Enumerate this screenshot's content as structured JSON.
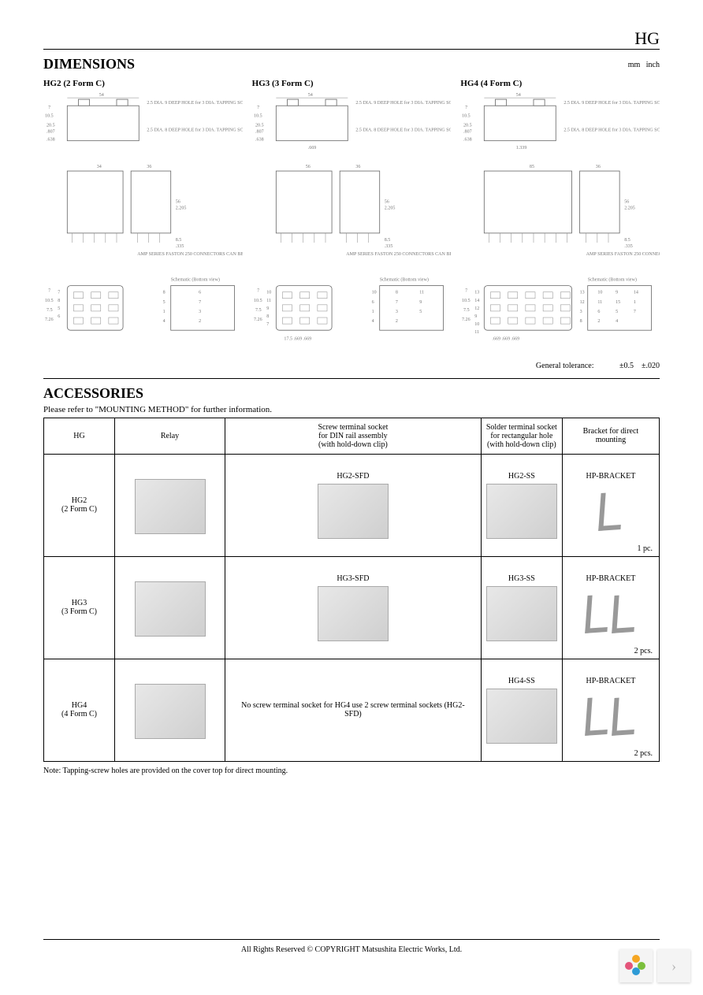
{
  "header": {
    "mark": "HG"
  },
  "dimensions": {
    "title": "DIMENSIONS",
    "units_mm": "mm",
    "units_inch": "inch",
    "cols": [
      {
        "label": "HG2 (2 Form C)",
        "top_dims": {
          "w": "54",
          "w_in": "",
          "h": "20.5",
          "h_in": ".807",
          "off": ".638",
          "t1": "7",
          "t2": "10.5"
        },
        "hole_note_a": "2.5 DIA. 9 DEEP HOLE for 3 DIA. TAPPING SCREW .098 DIA. .354 DEPTH",
        "hole_note_b": "2.5 DIA. 8 DEEP HOLE for 3 DIA. TAPPING SCREW .098 DIA. .315 DEPTH",
        "side_dims": {
          "w": "34",
          "h": "56",
          "h_in": "2.205",
          "d": "36",
          "pin": "8.5",
          "pin_in": ".335"
        },
        "conn_note": "AMP SERIES FASTON 250 CONNECTORS CAN BE USED",
        "schematic_title": "Schematic (Bottom view)",
        "bottom_left": {
          "a": "7",
          "b": "10.5",
          "c": "7.5",
          "d": "7.26"
        },
        "pins_l": [
          "7",
          "8",
          "5",
          "6"
        ],
        "pins_r": [
          "8",
          "6",
          "5",
          "7",
          "1",
          "3",
          "4",
          "2"
        ]
      },
      {
        "label": "HG3 (3 Form C)",
        "top_dims": {
          "w": "54",
          "h": "20.5",
          "h_in": ".807",
          "off": ".638",
          "t1": "7",
          "t2": "10.5",
          "mid": "4.5"
        },
        "hole_note_a": "2.5 DIA. 9 DEEP HOLE for 3 DIA. TAPPING SCREW .098 DIA. .354 DEPTH",
        "hole_note_b": "2.5 DIA. 8 DEEP HOLE for 3 DIA. TAPPING SCREW .098 DIA. .315 DEPTH",
        "bottom_ext": ".669",
        "side_dims": {
          "w": "56",
          "h": "56",
          "h_in": "2.205",
          "d": "36",
          "pin": "8.5",
          "pin_in": ".335"
        },
        "conn_note": "AMP SERIES FASTON 250 CONNECTORS CAN BE USED",
        "schematic_title": "Schematic (Bottom view)",
        "bottom_left": {
          "a": "7",
          "b": "10.5",
          "c": "7.5",
          "d": "7.26"
        },
        "pins_l": [
          "10",
          "11",
          "9",
          "8",
          "7"
        ],
        "pins_r": [
          "10",
          "8",
          "11",
          "6",
          "7",
          "9",
          "1",
          "3",
          "5",
          "4",
          "2"
        ],
        "bottom_dims": "17.5   .669   .669"
      },
      {
        "label": "HG4 (4 Form C)",
        "top_dims": {
          "w": "54",
          "h": "20.5",
          "h_in": ".807",
          "off": ".638",
          "t1": "7",
          "t2": "10.5"
        },
        "hole_note_a": "2.5 DIA. 9 DEEP HOLE for 3 DIA. TAPPING SCREW .098 DIA. .354 DEPTH",
        "hole_note_b": "2.5 DIA. 8 DEEP HOLE for 3 DIA. TAPPING SCREW .098 DIA. .315 DEPTH",
        "bottom_ext": "1.339",
        "side_dims": {
          "w": "85",
          "h": "56",
          "h_in": "2.205",
          "d": "36",
          "pin": "8.5",
          "pin_in": ".335"
        },
        "conn_note": "AMP SERIES FASTON 250 CONNECTORS CAN BE USED",
        "schematic_title": "Schematic (Bottom view)",
        "bottom_left": {
          "a": "7",
          "b": "10.5",
          "c": "7.5",
          "d": "7.26"
        },
        "pins_l": [
          "13",
          "14",
          "12",
          "9",
          "10",
          "11"
        ],
        "pins_r": [
          "13",
          "10",
          "9",
          "14",
          "12",
          "11",
          "15",
          "1",
          "3",
          "6",
          "5",
          "7",
          "8",
          "2",
          "4"
        ],
        "bottom_dims": ".669    .669    .669"
      }
    ],
    "tolerance_label": "General tolerance:",
    "tolerance_mm": "±0.5",
    "tolerance_in": "±.020"
  },
  "accessories": {
    "title": "ACCESSORIES",
    "refer_note": "Please refer to \"MOUNTING METHOD\" for further information.",
    "headers": {
      "c0": "HG",
      "c1": "Relay",
      "c2": "Screw terminal socket\nfor DIN rail assembly\n(with hold-down clip)",
      "c3": "Solder terminal socket\nfor rectangular hole\n(with hold-down clip)",
      "c4": "Bracket for direct mounting"
    },
    "rows": [
      {
        "hg": "HG2",
        "form": "(2 Form C)",
        "screw": "HG2-SFD",
        "solder": "HG2-SS",
        "bracket": "HP-BRACKET",
        "bracket_qty": "1 pc.",
        "bracket_count": 1
      },
      {
        "hg": "HG3",
        "form": "(3 Form C)",
        "screw": "HG3-SFD",
        "solder": "HG3-SS",
        "bracket": "HP-BRACKET",
        "bracket_qty": "2 pcs.",
        "bracket_count": 2
      },
      {
        "hg": "HG4",
        "form": "(4 Form C)",
        "screw_note": "No screw terminal socket for HG4 use 2 screw terminal sockets (HG2-SFD)",
        "solder": "HG4-SS",
        "bracket": "HP-BRACKET",
        "bracket_qty": "2 pcs.",
        "bracket_count": 2
      }
    ],
    "footnote": "Note:  Tapping-screw holes are provided on the cover top for direct mounting."
  },
  "footer": {
    "copyright": "All Rights Reserved © COPYRIGHT Matsushita Electric Works, Ltd."
  },
  "widget": {
    "petal_colors": [
      "#f5a623",
      "#7bbf3c",
      "#2e9bd6",
      "#e4557a"
    ]
  }
}
